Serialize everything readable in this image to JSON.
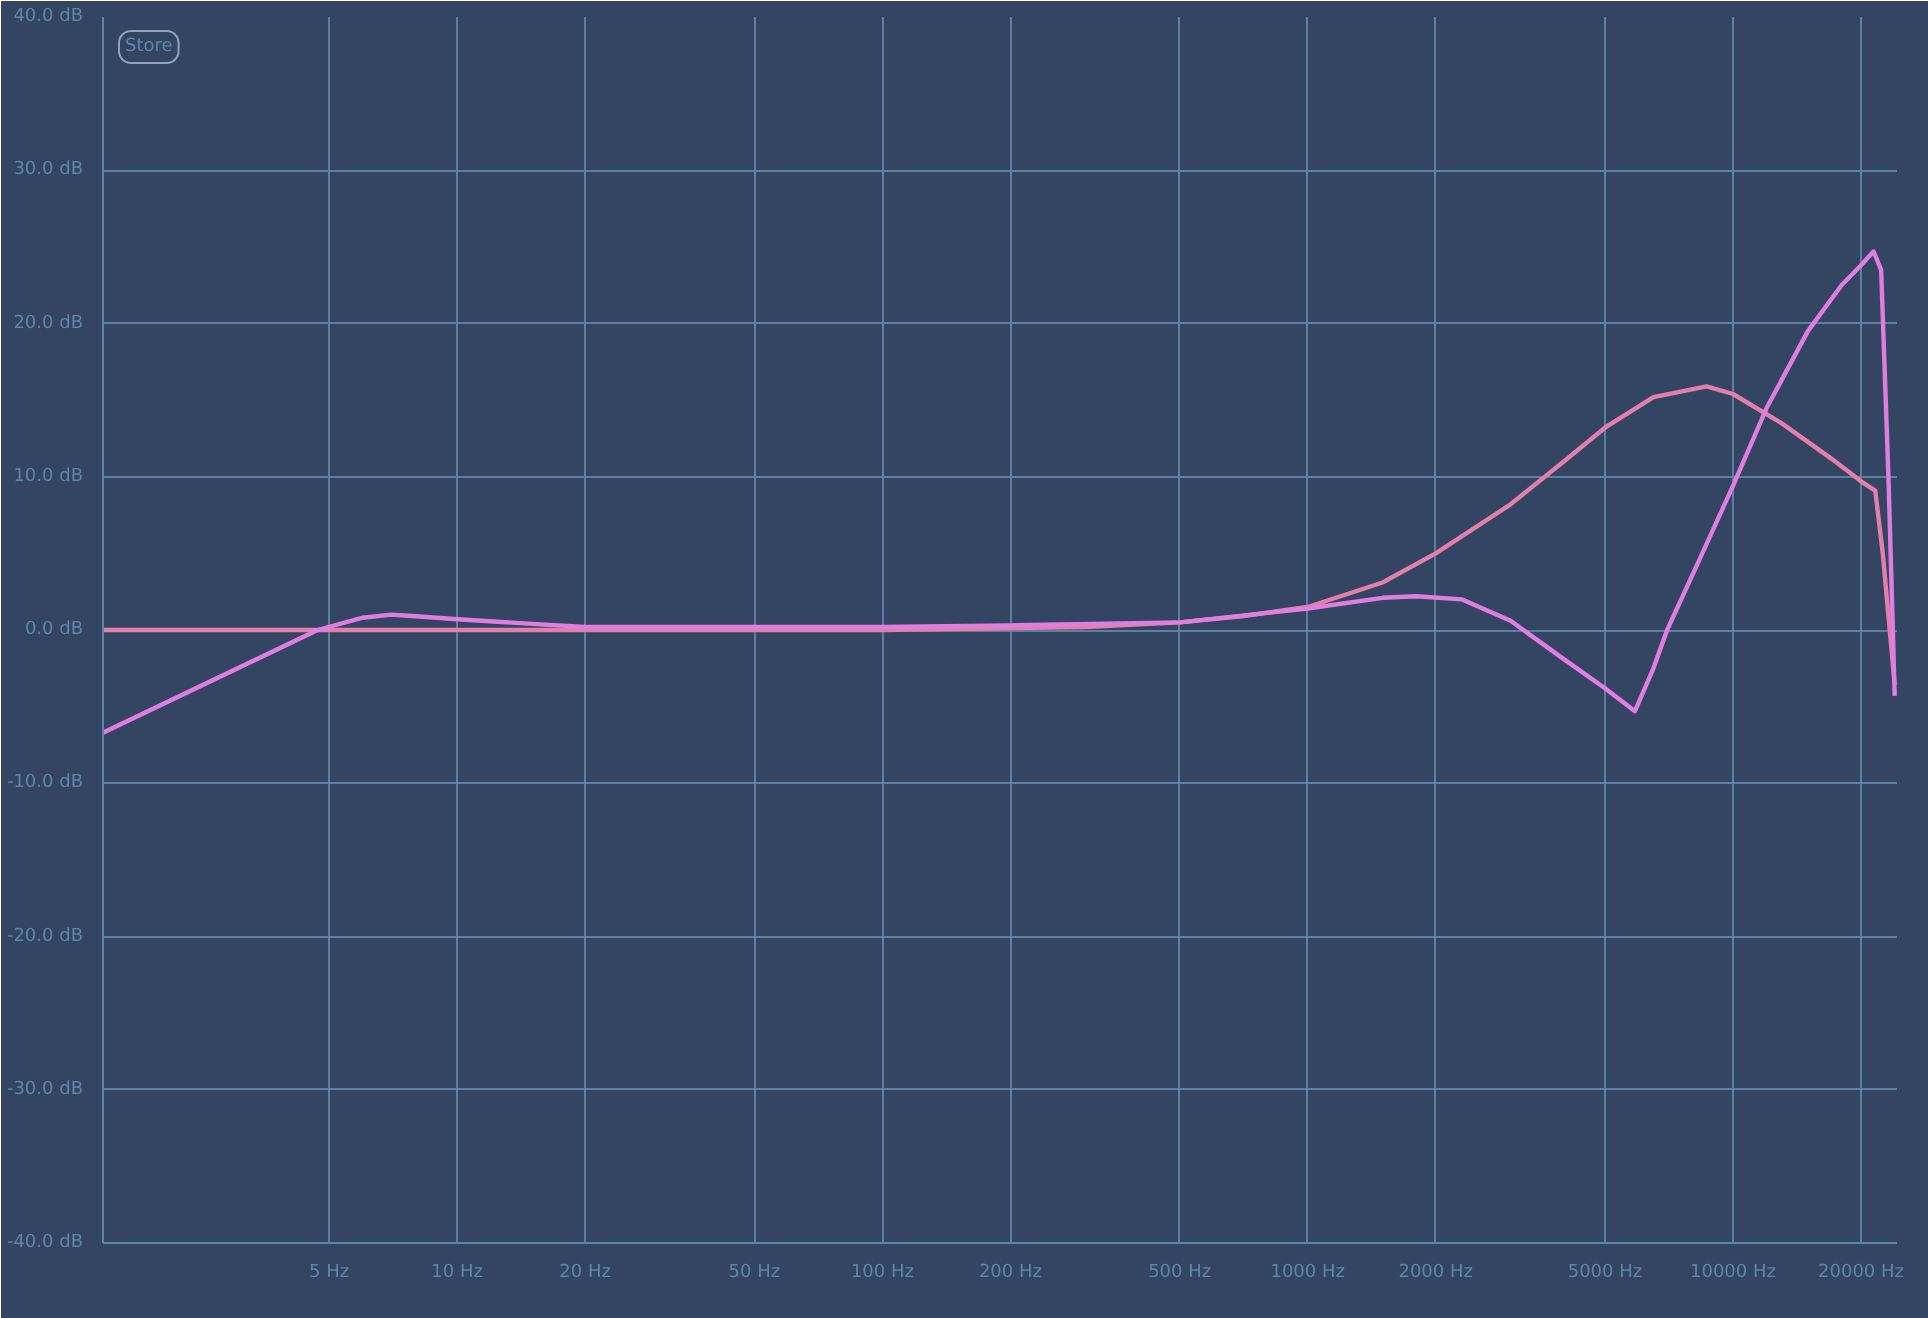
{
  "chart_data": {
    "type": "line",
    "log": "x",
    "grid": true,
    "marker": "none",
    "line_style": "solid",
    "xlim": [
      1.47,
      24300
    ],
    "ylim": [
      -40,
      40
    ],
    "xticks": [
      {
        "value": 5,
        "label": "5 Hz"
      },
      {
        "value": 10,
        "label": "10 Hz"
      },
      {
        "value": 20,
        "label": "20 Hz"
      },
      {
        "value": 50,
        "label": "50 Hz"
      },
      {
        "value": 100,
        "label": "100 Hz"
      },
      {
        "value": 200,
        "label": "200 Hz"
      },
      {
        "value": 500,
        "label": "500 Hz"
      },
      {
        "value": 1000,
        "label": "1000 Hz"
      },
      {
        "value": 2000,
        "label": "2000 Hz"
      },
      {
        "value": 5000,
        "label": "5000 Hz"
      },
      {
        "value": 10000,
        "label": "10000 Hz"
      },
      {
        "value": 20000,
        "label": "20000 Hz"
      }
    ],
    "yticks": [
      {
        "value": -40,
        "label": "-40.0 dB"
      },
      {
        "value": -30,
        "label": "-30.0 dB"
      },
      {
        "value": -20,
        "label": "-20.0 dB"
      },
      {
        "value": -10,
        "label": "-10.0 dB"
      },
      {
        "value": 0,
        "label": "0.0 dB"
      },
      {
        "value": 10,
        "label": "10.0 dB"
      },
      {
        "value": 20,
        "label": "20.0 dB"
      },
      {
        "value": 30,
        "label": "30.0 dB"
      },
      {
        "value": 40,
        "label": "40.0 dB"
      }
    ],
    "annotations": [
      "Store"
    ],
    "series": [
      {
        "color": "#e27fac",
        "x": [
          1.47,
          10,
          100,
          300,
          500,
          700,
          1000,
          1500,
          2000,
          3000,
          4000,
          5000,
          6500,
          8670,
          10000,
          13000,
          17000,
          20000,
          21600,
          22500,
          24000
        ],
        "values": [
          0,
          0,
          0,
          0.2,
          0.5,
          0.9,
          1.5,
          3.1,
          5.0,
          8.2,
          11.0,
          13.2,
          15.2,
          15.9,
          15.4,
          13.5,
          11.2,
          9.7,
          9.1,
          5,
          -3.6
        ]
      },
      {
        "color": "#e07ee0",
        "x": [
          1.47,
          4.7,
          6,
          7,
          8,
          10,
          15,
          20,
          50,
          100,
          200,
          500,
          1000,
          1500,
          1800,
          2300,
          3000,
          4000,
          5000,
          5880,
          6500,
          7000,
          8000,
          10000,
          12000,
          15000,
          18000,
          20000,
          21400,
          22300,
          23200,
          24000
        ],
        "values": [
          -6.7,
          0,
          0.8,
          1.0,
          0.9,
          0.7,
          0.4,
          0.2,
          0.2,
          0.2,
          0.3,
          0.5,
          1.4,
          2.1,
          2.2,
          2.0,
          0.6,
          -1.9,
          -3.8,
          -5.3,
          -2.5,
          0,
          3.5,
          9.4,
          14.5,
          19.5,
          22.5,
          23.8,
          24.7,
          23.5,
          10,
          -4.3
        ]
      }
    ]
  }
}
